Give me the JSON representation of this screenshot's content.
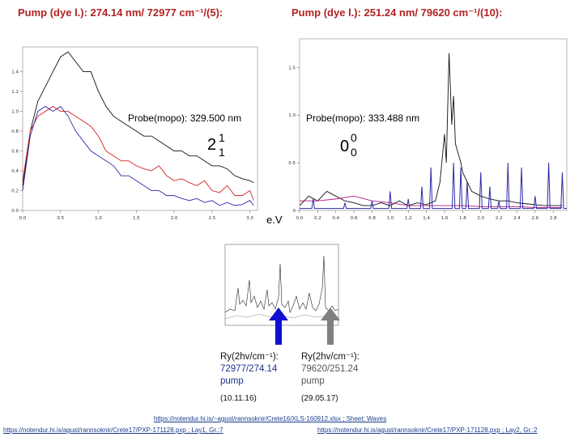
{
  "titles": {
    "left": "Pump (dye l.): 274.14 nm/ 72977 cm⁻¹/(5):",
    "right": "Pump (dye l.): 251.24 nm/ 79620 cm⁻¹/(10):"
  },
  "probes": {
    "left": "Probe(mopo): 329.500 nm",
    "right": "Probe(mopo): 333.488 nm"
  },
  "labels": {
    "left_big": "2",
    "left_sup": "1",
    "left_sub": "1",
    "right_big": "0",
    "right_sup": "0",
    "right_sub": "0",
    "ev": "e.V"
  },
  "captions": {
    "left_text": "Ry(2hv/cm⁻¹):",
    "left_value": "72977/274.14",
    "left_pump": "pump",
    "left_date": "(10.11.16)",
    "right_text": "Ry(2hv/cm⁻¹):",
    "right_value": "79620/251.24",
    "right_pump": "pump",
    "right_date": "(29.05.17)"
  },
  "links": {
    "top": "https://notendur.hi.is/~agust/rannsoknir/Crete16/XLS-160912.xlsx ; Sheet: Waves",
    "bottom_left": "https://notendur.hi.is/agust/rannsoknir/Crete17/PXP-171128.pxp ; Lay1, Gr.:7",
    "bottom_right": "https://notendur.hi.is/agust/rannsoknir/Crete17/PXP-171128.pxp ; Lay2, Gr.:2"
  },
  "colors": {
    "title": "#b22222",
    "black_series": "#111111",
    "red_series": "#d62020",
    "blue_series": "#2a2aa8",
    "magenta_series": "#b5178a",
    "blue_arrow": "#1010d0",
    "gray_arrow": "#808080"
  },
  "chart_data": [
    {
      "type": "line",
      "x_ticks": [
        "0.0",
        "0.5",
        "1.0",
        "1.5",
        "2.0",
        "2.5",
        "3.0"
      ],
      "y_ticks": [
        "0.0",
        "0.2",
        "0.4",
        "0.6",
        "0.8",
        "1.0",
        "1.2",
        "1.4"
      ],
      "xlim": [
        0,
        3.1
      ],
      "ylim": [
        0,
        1.65
      ],
      "series": [
        {
          "color": "black",
          "x": [
            0,
            0.1,
            0.2,
            0.3,
            0.4,
            0.5,
            0.6,
            0.7,
            0.8,
            0.9,
            1.0,
            1.1,
            1.2,
            1.3,
            1.4,
            1.5,
            1.6,
            1.7,
            1.8,
            1.9,
            2.0,
            2.1,
            2.2,
            2.3,
            2.4,
            2.5,
            2.6,
            2.7,
            2.8,
            2.9,
            3.0,
            3.05
          ],
          "y": [
            0.25,
            0.8,
            1.1,
            1.25,
            1.4,
            1.55,
            1.6,
            1.5,
            1.4,
            1.4,
            1.2,
            1.05,
            0.95,
            0.9,
            0.85,
            0.8,
            0.75,
            0.75,
            0.7,
            0.65,
            0.6,
            0.6,
            0.55,
            0.55,
            0.5,
            0.45,
            0.45,
            0.42,
            0.35,
            0.32,
            0.3,
            0.28
          ]
        },
        {
          "color": "red",
          "x": [
            0,
            0.1,
            0.2,
            0.3,
            0.4,
            0.5,
            0.6,
            0.7,
            0.8,
            0.9,
            1.0,
            1.1,
            1.2,
            1.3,
            1.4,
            1.5,
            1.6,
            1.7,
            1.8,
            1.9,
            2.0,
            2.1,
            2.2,
            2.3,
            2.4,
            2.5,
            2.6,
            2.7,
            2.8,
            2.9,
            3.0,
            3.05
          ],
          "y": [
            0.3,
            0.8,
            0.95,
            1.0,
            1.05,
            1.0,
            1.0,
            0.95,
            0.9,
            0.85,
            0.75,
            0.6,
            0.55,
            0.5,
            0.5,
            0.45,
            0.42,
            0.4,
            0.45,
            0.35,
            0.3,
            0.32,
            0.28,
            0.25,
            0.3,
            0.2,
            0.18,
            0.25,
            0.15,
            0.15,
            0.2,
            0.1
          ]
        },
        {
          "color": "blue",
          "x": [
            0,
            0.1,
            0.2,
            0.3,
            0.4,
            0.5,
            0.6,
            0.7,
            0.8,
            0.9,
            1.0,
            1.1,
            1.2,
            1.3,
            1.4,
            1.5,
            1.6,
            1.7,
            1.8,
            1.9,
            2.0,
            2.1,
            2.2,
            2.3,
            2.4,
            2.5,
            2.6,
            2.7,
            2.8,
            2.9,
            3.0,
            3.05
          ],
          "y": [
            0.2,
            0.75,
            1.0,
            1.05,
            1.0,
            1.05,
            0.95,
            0.8,
            0.7,
            0.6,
            0.55,
            0.5,
            0.45,
            0.35,
            0.35,
            0.3,
            0.25,
            0.2,
            0.2,
            0.15,
            0.15,
            0.12,
            0.1,
            0.12,
            0.08,
            0.1,
            0.05,
            0.08,
            0.05,
            0.06,
            0.1,
            0.05
          ]
        }
      ]
    },
    {
      "type": "line",
      "x_ticks": [
        "0.0",
        "0.2",
        "0.4",
        "0.6",
        "0.8",
        "1.0",
        "1.2",
        "1.4",
        "1.6",
        "1.8",
        "2.0",
        "2.2",
        "2.4",
        "2.6",
        "2.8"
      ],
      "y_ticks": [
        "0",
        "0.5",
        "1.0",
        "1.5"
      ],
      "xlim": [
        0,
        2.95
      ],
      "ylim": [
        0,
        1.8
      ],
      "series": [
        {
          "color": "black",
          "x": [
            0,
            0.1,
            0.2,
            0.3,
            0.4,
            0.5,
            0.6,
            0.7,
            0.8,
            0.9,
            1.0,
            1.1,
            1.2,
            1.3,
            1.4,
            1.5,
            1.55,
            1.6,
            1.62,
            1.65,
            1.68,
            1.7,
            1.72,
            1.75,
            1.78,
            1.8,
            1.85,
            1.9,
            2.0,
            2.1,
            2.2,
            2.3,
            2.4,
            2.5,
            2.6,
            2.7,
            2.8,
            2.9
          ],
          "y": [
            0.05,
            0.15,
            0.1,
            0.2,
            0.15,
            0.1,
            0.08,
            0.05,
            0.05,
            0.08,
            0.05,
            0.1,
            0.05,
            0.08,
            0.06,
            0.1,
            0.3,
            0.8,
            0.5,
            1.65,
            0.9,
            1.2,
            0.7,
            0.6,
            0.5,
            0.4,
            0.3,
            0.2,
            0.15,
            0.12,
            0.1,
            0.1,
            0.08,
            0.07,
            0.06,
            0.05,
            0.05,
            0.05
          ]
        },
        {
          "color": "magenta",
          "x": [
            0,
            0.2,
            0.4,
            0.6,
            0.8,
            1.0,
            1.2,
            1.4,
            1.6,
            1.8,
            2.0,
            2.2,
            2.4,
            2.6,
            2.8,
            2.9
          ],
          "y": [
            0.1,
            0.1,
            0.12,
            0.15,
            0.1,
            0.08,
            0.05,
            0.05,
            0.05,
            0.05,
            0.04,
            0.04,
            0.04,
            0.03,
            0.03,
            0.03
          ]
        },
        {
          "color": "blue",
          "peaks": [
            [
              0.15,
              0.12
            ],
            [
              0.5,
              0.08
            ],
            [
              0.8,
              0.1
            ],
            [
              1.0,
              0.2
            ],
            [
              1.2,
              0.12
            ],
            [
              1.35,
              0.25
            ],
            [
              1.45,
              0.45
            ],
            [
              1.7,
              0.5
            ],
            [
              1.78,
              0.45
            ],
            [
              1.85,
              0.3
            ],
            [
              2.0,
              0.4
            ],
            [
              2.1,
              0.25
            ],
            [
              2.2,
              0.1
            ],
            [
              2.3,
              0.5
            ],
            [
              2.45,
              0.45
            ],
            [
              2.6,
              0.15
            ],
            [
              2.75,
              0.5
            ],
            [
              2.9,
              0.4
            ]
          ]
        }
      ]
    }
  ]
}
